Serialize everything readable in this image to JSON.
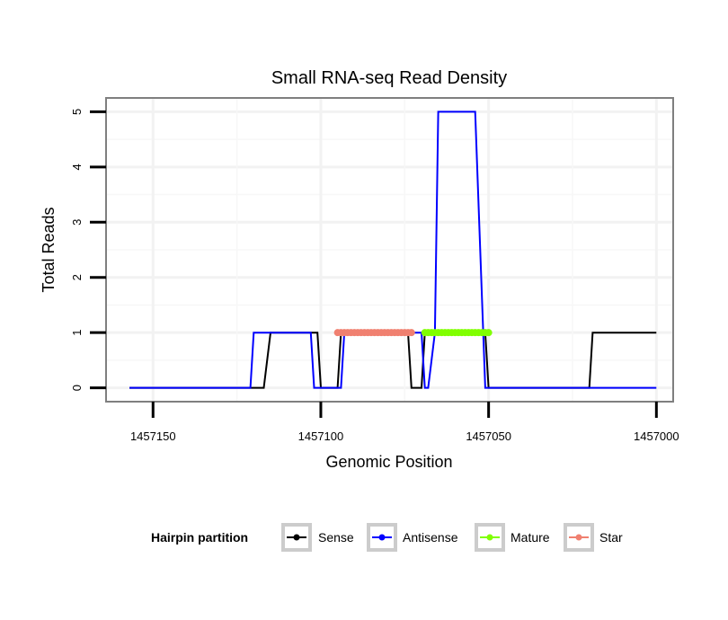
{
  "chart_data": {
    "type": "line",
    "title": "Small RNA-seq Read Density",
    "xlabel": "Genomic Position",
    "ylabel": "Total Reads",
    "x_reversed": true,
    "xlim": [
      1457164,
      1456995
    ],
    "ylim": [
      -0.25,
      5.25
    ],
    "x_ticks": [
      1457150,
      1457100,
      1457050,
      1457000
    ],
    "x_tick_labels": [
      "1457150",
      "1457100",
      "1457050",
      "1457000"
    ],
    "y_ticks": [
      0,
      1,
      2,
      3,
      4,
      5
    ],
    "y_tick_labels": [
      "0",
      "1",
      "2",
      "3",
      "4",
      "5"
    ],
    "grid": true,
    "legend_title": "Hairpin partition",
    "legend_position": "bottom",
    "series": [
      {
        "name": "Sense",
        "color": "#000000",
        "style": "line",
        "x": [
          1457157,
          1457118,
          1457117,
          1457115,
          1457101,
          1457100,
          1457095,
          1457094,
          1457074,
          1457073,
          1457070,
          1457069,
          1457051,
          1457050,
          1457020,
          1457019,
          1457000
        ],
        "y": [
          0,
          0,
          0,
          1,
          1,
          0,
          0,
          1,
          1,
          0,
          0,
          1,
          1,
          0,
          0,
          1,
          1
        ]
      },
      {
        "name": "Antisense",
        "color": "#0000ff",
        "style": "line",
        "x": [
          1457157,
          1457121,
          1457120,
          1457103,
          1457102,
          1457094,
          1457093,
          1457070,
          1457069,
          1457068,
          1457066,
          1457065,
          1457054,
          1457051,
          1457050,
          1457000
        ],
        "y": [
          0,
          0,
          1,
          1,
          0,
          0,
          1,
          1,
          0,
          0,
          1,
          5,
          5,
          0,
          0,
          0
        ]
      },
      {
        "name": "Mature",
        "color": "#80ff00",
        "style": "points",
        "x": [
          1457069,
          1457068,
          1457067,
          1457066,
          1457065,
          1457064,
          1457063,
          1457062,
          1457061,
          1457060,
          1457059,
          1457058,
          1457057,
          1457056,
          1457055,
          1457054,
          1457053,
          1457052,
          1457051,
          1457050
        ],
        "y": [
          1,
          1,
          1,
          1,
          1,
          1,
          1,
          1,
          1,
          1,
          1,
          1,
          1,
          1,
          1,
          1,
          1,
          1,
          1,
          1
        ]
      },
      {
        "name": "Star",
        "color": "#f08070",
        "style": "points",
        "x": [
          1457095,
          1457094,
          1457093,
          1457092,
          1457091,
          1457090,
          1457089,
          1457088,
          1457087,
          1457086,
          1457085,
          1457084,
          1457083,
          1457082,
          1457081,
          1457080,
          1457079,
          1457078,
          1457077,
          1457076,
          1457075,
          1457074,
          1457073
        ],
        "y": [
          1,
          1,
          1,
          1,
          1,
          1,
          1,
          1,
          1,
          1,
          1,
          1,
          1,
          1,
          1,
          1,
          1,
          1,
          1,
          1,
          1,
          1,
          1
        ]
      }
    ]
  }
}
